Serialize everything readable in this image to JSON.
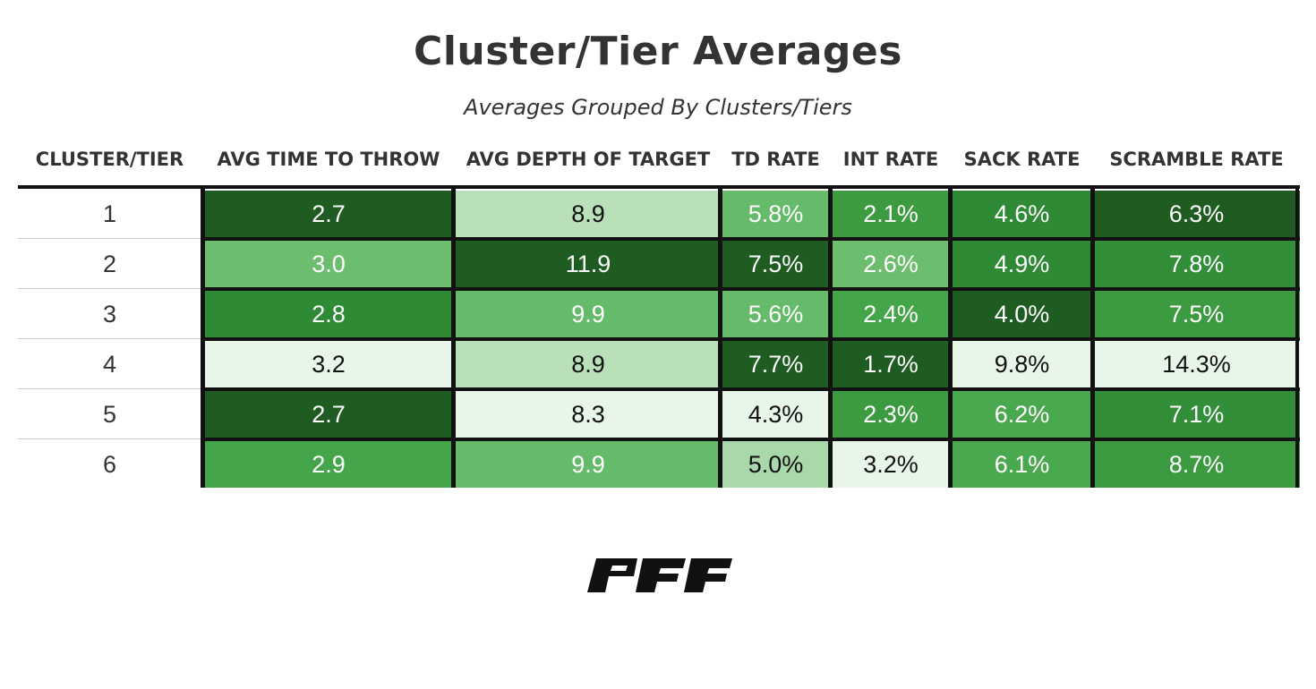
{
  "chart_data": {
    "type": "table",
    "title": "Cluster/Tier Averages",
    "subtitle": "Averages Grouped By Clusters/Tiers",
    "columns": [
      "CLUSTER/TIER",
      "AVG TIME TO THROW",
      "AVG DEPTH OF TARGET",
      "TD RATE",
      "INT RATE",
      "SACK RATE",
      "SCRAMBLE RATE"
    ],
    "rows": [
      {
        "tier": "1",
        "values": [
          "2.7",
          "8.9",
          "5.8%",
          "2.1%",
          "4.6%",
          "6.3%"
        ]
      },
      {
        "tier": "2",
        "values": [
          "3.0",
          "11.9",
          "7.5%",
          "2.6%",
          "4.9%",
          "7.8%"
        ]
      },
      {
        "tier": "3",
        "values": [
          "2.8",
          "9.9",
          "5.6%",
          "2.4%",
          "4.0%",
          "7.5%"
        ]
      },
      {
        "tier": "4",
        "values": [
          "3.2",
          "8.9",
          "7.7%",
          "1.7%",
          "9.8%",
          "14.3%"
        ]
      },
      {
        "tier": "5",
        "values": [
          "2.7",
          "8.3",
          "4.3%",
          "2.3%",
          "6.2%",
          "7.1%"
        ]
      },
      {
        "tier": "6",
        "values": [
          "2.9",
          "9.9",
          "5.0%",
          "3.2%",
          "6.1%",
          "8.7%"
        ]
      }
    ],
    "cell_colors": [
      [
        "#1e5c22",
        "#b9e0b9",
        "#66bb6a",
        "#3c9a41",
        "#2f8a36",
        "#1e5c22"
      ],
      [
        "#6dbd6f",
        "#1e5c22",
        "#1e5c22",
        "#6dbd6f",
        "#2f8a36",
        "#338e3a"
      ],
      [
        "#2f8a36",
        "#66bb6a",
        "#66bb6a",
        "#45a54a",
        "#1e5c22",
        "#3c9a41"
      ],
      [
        "#e8f5e9",
        "#b9e0b9",
        "#1e5c22",
        "#1e5c22",
        "#e8f5e9",
        "#e8f5e9"
      ],
      [
        "#1e5c22",
        "#e8f5e9",
        "#e8f5e9",
        "#3c9a41",
        "#4aa84e",
        "#338e3a"
      ],
      [
        "#45a54a",
        "#66bb6a",
        "#a9d8aa",
        "#e8f5e9",
        "#4aa84e",
        "#3c9a41"
      ]
    ],
    "text_colors": {
      "on_dark": "#ffffff",
      "on_light": "#111111"
    },
    "gridlines": false
  },
  "logo": {
    "text": "PFF",
    "color": "#111111"
  }
}
